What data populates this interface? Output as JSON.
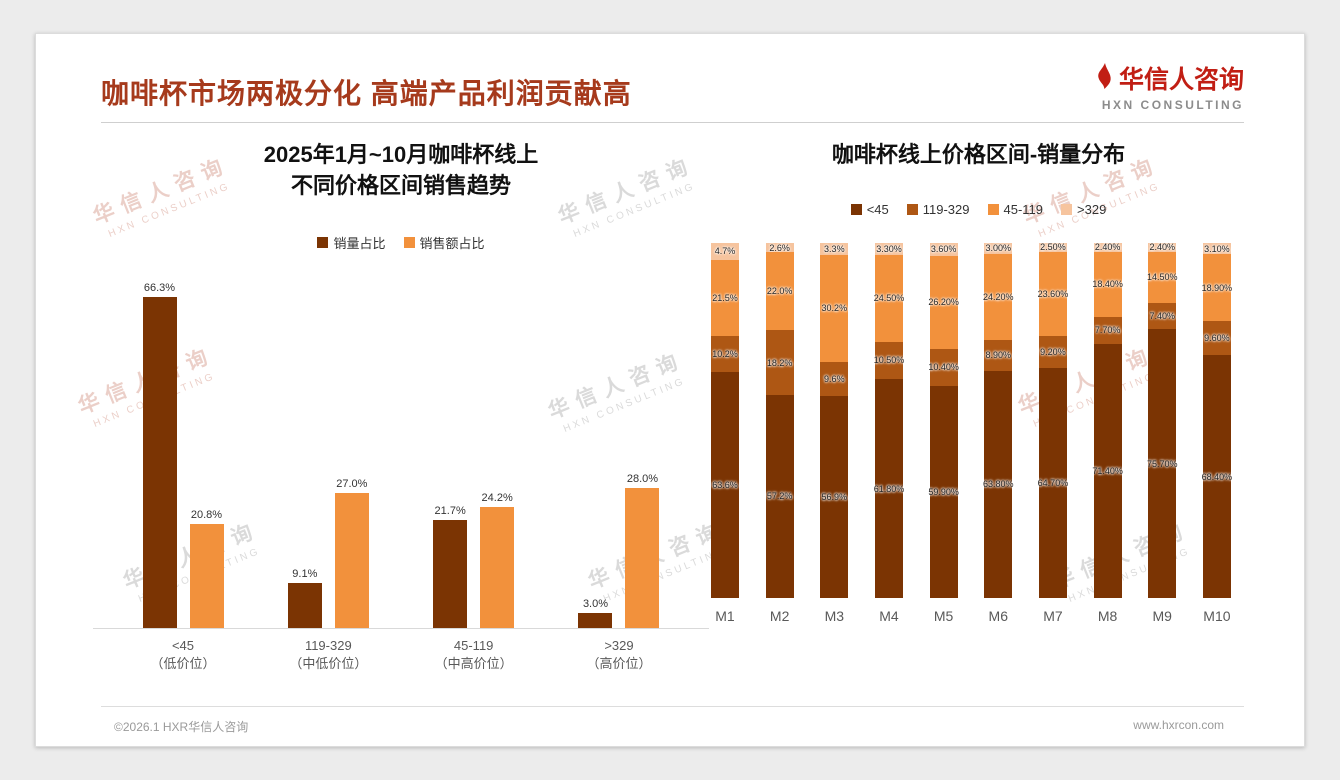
{
  "header": {
    "title": "咖啡杯市场两极分化 高端产品利润贡献高",
    "logo": {
      "name": "华信人咨询",
      "subtitle": "HXN CONSULTING"
    }
  },
  "watermark": {
    "line1": "华信人咨询",
    "line2": "HXN CONSULTING"
  },
  "footer": {
    "copyright": "©2026.1 HXR华信人咨询",
    "website": "www.hxrcon.com"
  },
  "colors": {
    "title_accent": "#A63A1C",
    "dark_brown": "#7B3403",
    "rust": "#AE5714",
    "orange": "#F2913C",
    "peach": "#F6C49E"
  },
  "chart_data": [
    {
      "type": "bar",
      "title": "2025年1月~10月咖啡杯线上 不同价格区间销售趋势",
      "title_lines": [
        "2025年1月~10月咖啡杯线上",
        "不同价格区间销售趋势"
      ],
      "categories": [
        [
          "<45",
          "（低价位）"
        ],
        [
          "119-329",
          "（中低价位）"
        ],
        [
          "45-119",
          "（中高价位）"
        ],
        [
          ">329",
          "（高价位）"
        ]
      ],
      "series": [
        {
          "name": "销量占比",
          "color": "#7B3403",
          "values": [
            66.3,
            9.1,
            21.7,
            3.0
          ],
          "labels": [
            "66.3%",
            "9.1%",
            "21.7%",
            "3.0%"
          ]
        },
        {
          "name": "销售额占比",
          "color": "#F2913C",
          "values": [
            20.8,
            27.0,
            24.2,
            28.0
          ],
          "labels": [
            "20.8%",
            "27.0%",
            "24.2%",
            "28.0%"
          ]
        }
      ],
      "ylim": [
        0,
        70
      ],
      "legend_position": "top",
      "grid": false
    },
    {
      "type": "stacked-bar",
      "title": "咖啡杯线上价格区间-销量分布",
      "categories": [
        "M1",
        "M2",
        "M3",
        "M4",
        "M5",
        "M6",
        "M7",
        "M8",
        "M9",
        "M10"
      ],
      "series": [
        {
          "name": "<45",
          "color": "#7B3403",
          "values": [
            63.6,
            57.2,
            56.9,
            61.8,
            59.9,
            63.8,
            64.7,
            71.4,
            75.7,
            68.4
          ],
          "labels": [
            "63.6%",
            "57.2%",
            "56.9%",
            "61.80%",
            "59.90%",
            "63.80%",
            "64.70%",
            "71.40%",
            "75.70%",
            "68.40%"
          ]
        },
        {
          "name": "119-329",
          "color": "#AE5714",
          "values": [
            10.2,
            18.2,
            9.6,
            10.5,
            10.4,
            8.9,
            9.2,
            7.7,
            7.4,
            9.6
          ],
          "labels": [
            "10.2%",
            "18.2%",
            "9.6%",
            "10.50%",
            "10.40%",
            "8.90%",
            "9.20%",
            "7.70%",
            "7.40%",
            "9.60%"
          ]
        },
        {
          "name": "45-119",
          "color": "#F2913C",
          "values": [
            21.5,
            22.0,
            30.2,
            24.5,
            26.2,
            24.2,
            23.6,
            18.4,
            14.5,
            18.9
          ],
          "labels": [
            "21.5%",
            "22.0%",
            "30.2%",
            "24.50%",
            "26.20%",
            "24.20%",
            "23.60%",
            "18.40%",
            "14.50%",
            "18.90%"
          ]
        },
        {
          "name": ">329",
          "color": "#F6C49E",
          "values": [
            4.7,
            2.6,
            3.3,
            3.3,
            3.6,
            3.0,
            2.5,
            2.4,
            2.4,
            3.1
          ],
          "labels": [
            "4.7%",
            "2.6%",
            "3.3%",
            "3.30%",
            "3.60%",
            "3.00%",
            "2.50%",
            "2.40%",
            "2.40%",
            "3.10%"
          ]
        }
      ],
      "ylim": [
        0,
        100
      ],
      "legend_position": "top",
      "grid": false
    }
  ]
}
